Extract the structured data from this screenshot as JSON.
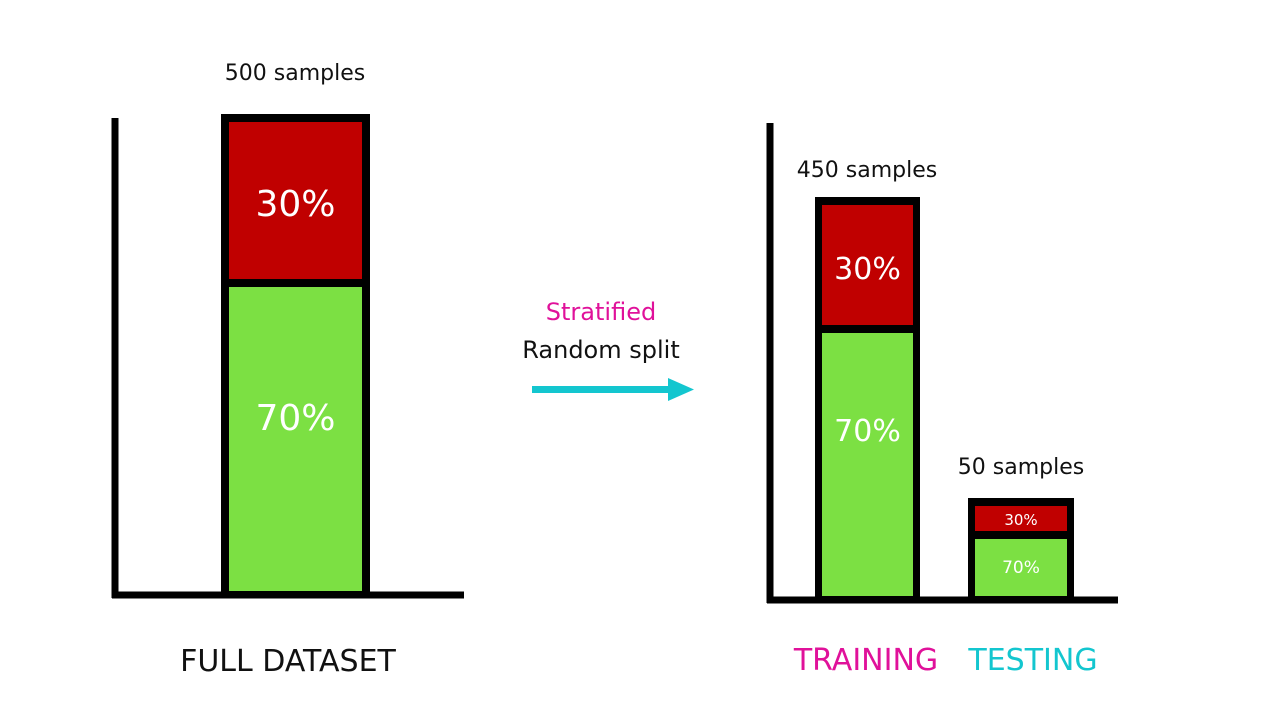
{
  "colors": {
    "red": "#c00000",
    "green": "#7ce043",
    "frame": "#000000",
    "magenta": "#e0119a",
    "cyan": "#13c6cf",
    "text_dark": "#111111",
    "text_light": "#ffffff"
  },
  "full_dataset": {
    "samples_label": "500 samples",
    "segments": [
      {
        "label": "30%",
        "value": 30,
        "color": "red"
      },
      {
        "label": "70%",
        "value": 70,
        "color": "green"
      }
    ],
    "caption": "FULL DATASET"
  },
  "arrow": {
    "line1": "Stratified",
    "line2": "Random split"
  },
  "training": {
    "samples_label": "450 samples",
    "segments": [
      {
        "label": "30%",
        "value": 30,
        "color": "red"
      },
      {
        "label": "70%",
        "value": 70,
        "color": "green"
      }
    ],
    "caption": "TRAINING"
  },
  "testing": {
    "samples_label": "50 samples",
    "segments": [
      {
        "label": "30%",
        "value": 30,
        "color": "red"
      },
      {
        "label": "70%",
        "value": 70,
        "color": "green"
      }
    ],
    "caption": "TESTING"
  }
}
